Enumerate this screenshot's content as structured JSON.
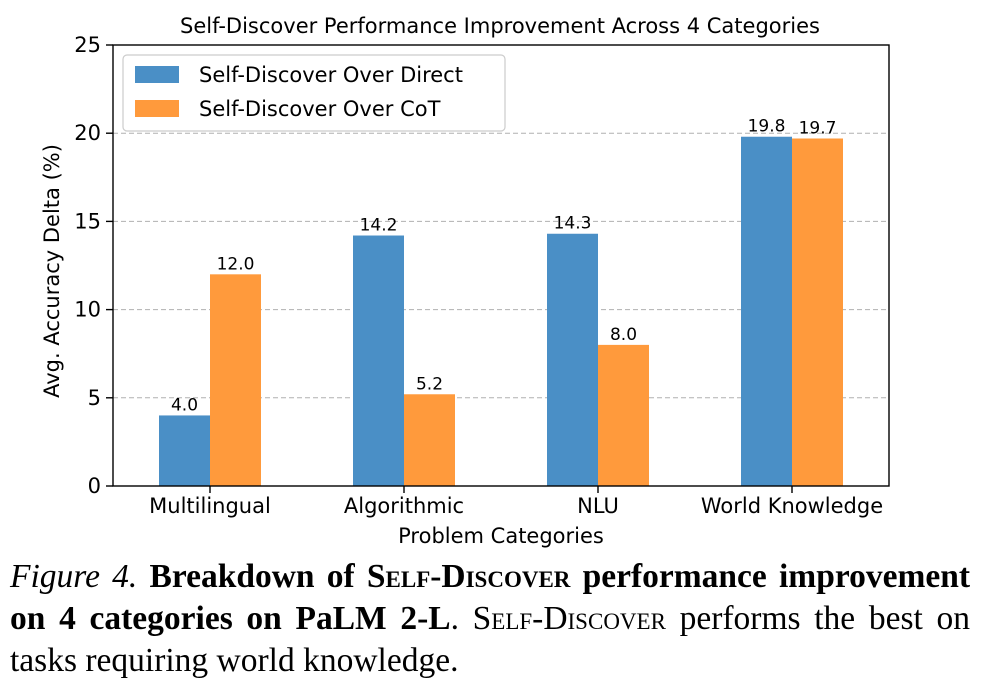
{
  "chart_data": {
    "type": "bar",
    "title": "Self-Discover Performance Improvement Across 4 Categories",
    "xlabel": "Problem Categories",
    "ylabel": "Avg. Accuracy Delta (%)",
    "ylim": [
      0,
      25
    ],
    "yticks": [
      0,
      5,
      10,
      15,
      20,
      25
    ],
    "grid": "y-dashed",
    "legend_position": "top-left",
    "categories": [
      "Multilingual",
      "Algorithmic",
      "NLU",
      "World Knowledge"
    ],
    "series": [
      {
        "name": "Self-Discover Over Direct",
        "color": "#4a8fc6",
        "values": [
          4.0,
          14.2,
          14.3,
          19.8
        ],
        "labels": [
          "4.0",
          "14.2",
          "14.3",
          "19.8"
        ]
      },
      {
        "name": "Self-Discover Over CoT",
        "color": "#ff9a3c",
        "values": [
          12.0,
          5.2,
          8.0,
          19.7
        ],
        "labels": [
          "12.0",
          "5.2",
          "8.0",
          "19.7"
        ]
      }
    ]
  },
  "caption": {
    "label": "Figure 4.",
    "bold_lead": "Breakdown of",
    "bold_sc1": "Self-Discover",
    "bold_tail": "performance improvement on 4 categories on PaLM 2-L",
    "sc2": "Self-Discover",
    "rest": "performs the best on tasks requiring world knowledge."
  }
}
